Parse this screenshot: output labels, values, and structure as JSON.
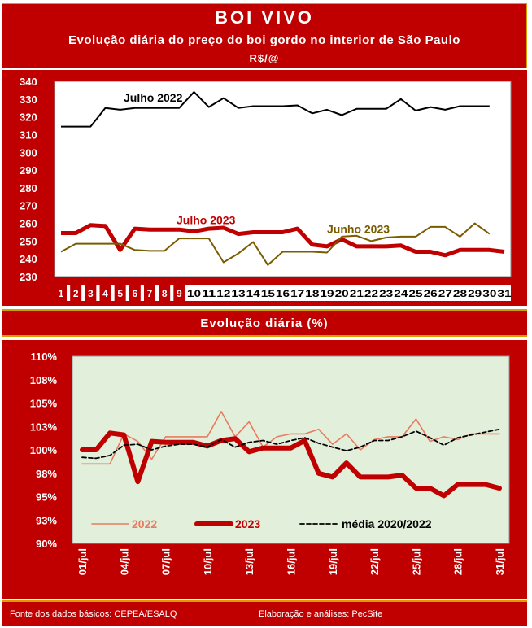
{
  "header": {
    "title": "BOI VIVO",
    "subtitle": "Evolução diária do preço do boi gordo no interior de São Paulo",
    "unit": "R$/@"
  },
  "section2_title": "Evolução diária (%)",
  "footer": {
    "source": "Fonte dos dados básicos: CEPEA/ESALQ",
    "credit": "Elaboração e análises: PecSite"
  },
  "colors": {
    "panel": "#c00000",
    "gold": "#d4a000",
    "julho2022": "#000000",
    "julho2023": "#c00000",
    "junho2023": "#7a5c00",
    "s2022": "#e87a60",
    "s2023": "#c00000",
    "media": "#000000",
    "plot2_bg": "#e2efda"
  },
  "chart_data": [
    {
      "type": "line",
      "ylim": [
        230,
        340
      ],
      "yticks": [
        "230",
        "240",
        "250",
        "260",
        "270",
        "280",
        "290",
        "300",
        "310",
        "320",
        "330",
        "340"
      ],
      "x": [
        "1",
        "2",
        "3",
        "4",
        "5",
        "6",
        "7",
        "8",
        "9",
        "10",
        "11",
        "12",
        "13",
        "14",
        "15",
        "16",
        "17",
        "18",
        "19",
        "20",
        "21",
        "22",
        "23",
        "24",
        "25",
        "26",
        "27",
        "28",
        "29",
        "30",
        "31"
      ],
      "series": [
        {
          "name": "Julho 2022",
          "values": [
            314.5,
            314.5,
            314.5,
            325,
            324,
            325,
            325,
            325,
            325,
            334,
            325.5,
            330.5,
            325,
            326,
            326,
            326,
            326.5,
            322,
            324,
            321,
            324.5,
            324.5,
            324.5,
            330,
            323.5,
            325.5,
            324,
            326,
            326,
            326,
            null
          ]
        },
        {
          "name": "Julho 2023",
          "values": [
            254.5,
            254.5,
            259,
            258.5,
            245,
            257,
            256.5,
            256.5,
            256.5,
            255.5,
            257,
            257.5,
            254,
            255,
            255,
            255,
            257,
            248,
            247,
            251,
            247,
            247,
            247,
            247.5,
            244,
            244,
            242,
            245,
            245,
            245,
            244
          ]
        },
        {
          "name": "Junho 2023",
          "values": [
            244,
            248.5,
            248.5,
            248.5,
            248.5,
            245,
            244.5,
            244.5,
            251.5,
            251.5,
            251.5,
            238,
            243,
            249.5,
            236.5,
            244,
            244,
            244,
            243.5,
            252.5,
            253,
            250,
            252,
            252.5,
            252.5,
            258,
            258,
            252.5,
            260,
            254,
            null
          ]
        }
      ]
    },
    {
      "type": "line",
      "ylim": [
        90,
        110
      ],
      "yticks": [
        "90%",
        "93%",
        "95%",
        "98%",
        "100%",
        "103%",
        "105%",
        "108%",
        "110%"
      ],
      "xticks": [
        "01/jul",
        "04/jul",
        "07/jul",
        "10/jul",
        "13/jul",
        "16/jul",
        "19/jul",
        "22/jul",
        "25/jul",
        "28/jul",
        "31/jul"
      ],
      "days": 31,
      "series": [
        {
          "name": "2022",
          "values": [
            98.5,
            98.5,
            98.5,
            101.7,
            100.9,
            99.0,
            101.4,
            101.4,
            101.4,
            101.4,
            104.1,
            101.4,
            103.0,
            100.3,
            101.4,
            101.7,
            101.7,
            102.2,
            100.6,
            101.7,
            100.0,
            101.1,
            101.4,
            101.4,
            103.3,
            100.9,
            101.4,
            101.1,
            101.7,
            101.7,
            101.7
          ]
        },
        {
          "name": "2023",
          "values": [
            100.0,
            100.0,
            101.8,
            101.6,
            96.6,
            100.9,
            100.8,
            100.8,
            100.8,
            100.4,
            101.0,
            101.2,
            99.8,
            100.2,
            100.2,
            100.2,
            101.0,
            97.5,
            97.1,
            98.6,
            97.1,
            97.1,
            97.1,
            97.3,
            95.9,
            95.9,
            95.1,
            96.3,
            96.3,
            96.3,
            95.9
          ]
        },
        {
          "name": "média 2020/2022",
          "values": [
            99.2,
            99.1,
            99.4,
            100.5,
            100.6,
            100.0,
            100.4,
            100.6,
            100.6,
            100.3,
            101.1,
            100.3,
            100.8,
            101.0,
            100.6,
            101.0,
            101.3,
            100.7,
            100.3,
            99.9,
            100.3,
            101.0,
            101.0,
            101.4,
            102.0,
            101.3,
            100.5,
            101.3,
            101.6,
            101.9,
            102.2
          ]
        }
      ]
    }
  ]
}
